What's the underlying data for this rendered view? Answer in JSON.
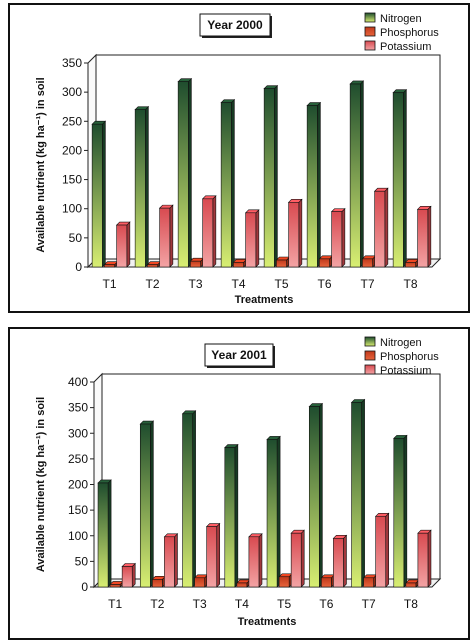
{
  "chart_data": [
    {
      "type": "bar",
      "title": "Year 2000",
      "xlabel": "Treatments",
      "ylabel": "Available nutrient (kg ha⁻¹) in soil",
      "categories": [
        "T1",
        "T2",
        "T3",
        "T4",
        "T5",
        "T6",
        "T7",
        "T8"
      ],
      "ylim": [
        0,
        350
      ],
      "yticks": [
        0,
        50,
        100,
        150,
        200,
        250,
        300,
        350
      ],
      "series": [
        {
          "name": "Nitrogen",
          "values": [
            245,
            270,
            318,
            282,
            306,
            277,
            314,
            299
          ]
        },
        {
          "name": "Phosphorus",
          "values": [
            4,
            4,
            10,
            8,
            12,
            14,
            14,
            8
          ]
        },
        {
          "name": "Potassium",
          "values": [
            72,
            101,
            117,
            93,
            111,
            95,
            130,
            99
          ]
        }
      ],
      "legend": "top-right",
      "grid": false
    },
    {
      "type": "bar",
      "title": "Year 2001",
      "xlabel": "Treatments",
      "ylabel": "Available nutrient (kg ha⁻¹) in soil",
      "categories": [
        "T1",
        "T2",
        "T3",
        "T4",
        "T5",
        "T6",
        "T7",
        "T8"
      ],
      "ylim": [
        0,
        400
      ],
      "yticks": [
        0,
        50,
        100,
        150,
        200,
        250,
        300,
        350,
        400
      ],
      "series": [
        {
          "name": "Nitrogen",
          "values": [
            203,
            318,
            338,
            272,
            288,
            352,
            360,
            290
          ]
        },
        {
          "name": "Phosphorus",
          "values": [
            5,
            15,
            18,
            8,
            20,
            18,
            18,
            8
          ]
        },
        {
          "name": "Potassium",
          "values": [
            40,
            98,
            118,
            98,
            105,
            95,
            138,
            105
          ]
        }
      ],
      "legend": "top-right",
      "grid": false
    }
  ],
  "colors": {
    "Nitrogen": [
      "#1f4d2e",
      "#d8ee72"
    ],
    "Phosphorus": [
      "#c0391b",
      "#e8643c"
    ],
    "Potassium": [
      "#d84a50",
      "#f3a3a4"
    ]
  }
}
